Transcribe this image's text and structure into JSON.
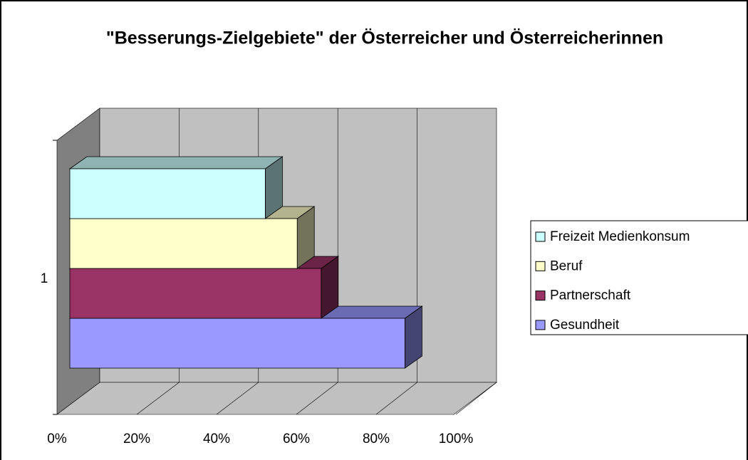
{
  "chart_data": {
    "type": "bar3d_horizontal",
    "title": "\"Besserungs-Zielgebiete\" der Österreicher und Österreicherinnen",
    "categories": [
      "1"
    ],
    "series": [
      {
        "name": "Freizeit Medienkonsum",
        "color": "#ccffff",
        "values": [
          49
        ]
      },
      {
        "name": "Beruf",
        "color": "#ffffcc",
        "values": [
          57
        ]
      },
      {
        "name": "Partnerschaft",
        "color": "#993366",
        "values": [
          63
        ]
      },
      {
        "name": "Gesundheit",
        "color": "#9999ff",
        "values": [
          84
        ]
      }
    ],
    "xlim": [
      0,
      100
    ],
    "xticks": [
      {
        "value": 0,
        "label": "0%"
      },
      {
        "value": 20,
        "label": "20%"
      },
      {
        "value": 40,
        "label": "40%"
      },
      {
        "value": 60,
        "label": "60%"
      },
      {
        "value": 80,
        "label": "80%"
      },
      {
        "value": 100,
        "label": "100%"
      }
    ],
    "grid": true
  }
}
